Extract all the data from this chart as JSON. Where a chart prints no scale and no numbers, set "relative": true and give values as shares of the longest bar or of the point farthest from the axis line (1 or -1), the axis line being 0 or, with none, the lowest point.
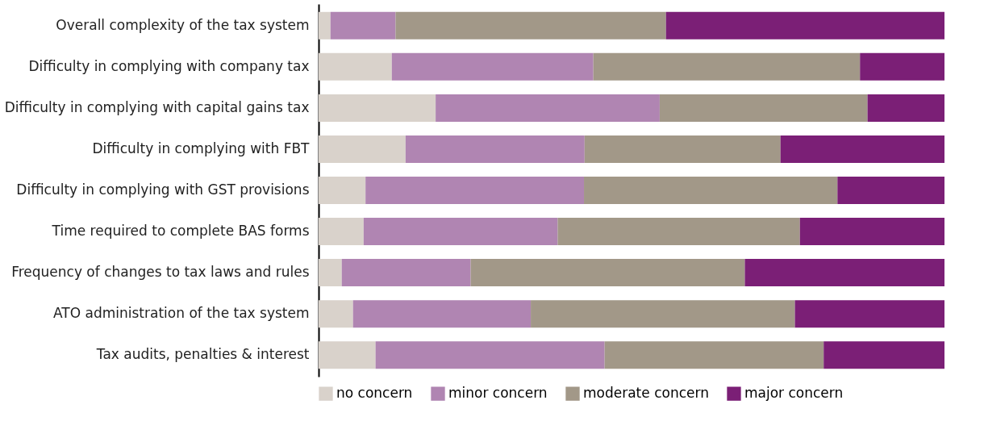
{
  "chart_data": {
    "type": "bar",
    "orientation": "horizontal",
    "stacked": true,
    "relative": true,
    "legend": "bottom",
    "categories": [
      "Overall complexity of the tax system",
      "Difficulty in complying with company tax",
      "Difficulty in complying with capital gains tax",
      "Difficulty in complying with FBT",
      "Difficulty in complying with GST provisions",
      "Time required to complete BAS forms",
      "Frequency of changes to tax laws and rules",
      "ATO administration of the tax system",
      "Tax audits, penalties & interest"
    ],
    "series": [
      {
        "name": "no concern",
        "color": "#d9d2cb",
        "values": [
          0.019,
          0.117,
          0.187,
          0.139,
          0.075,
          0.072,
          0.037,
          0.055,
          0.091
        ]
      },
      {
        "name": "minor concern",
        "color": "#b085b2",
        "values": [
          0.104,
          0.322,
          0.358,
          0.286,
          0.349,
          0.31,
          0.206,
          0.284,
          0.366
        ]
      },
      {
        "name": "moderate concern",
        "color": "#a29888",
        "values": [
          0.432,
          0.426,
          0.332,
          0.313,
          0.405,
          0.387,
          0.438,
          0.422,
          0.35
        ]
      },
      {
        "name": "major concern",
        "color": "#7b1f76",
        "values": [
          0.445,
          0.135,
          0.123,
          0.262,
          0.171,
          0.231,
          0.319,
          0.239,
          0.193
        ]
      }
    ]
  }
}
